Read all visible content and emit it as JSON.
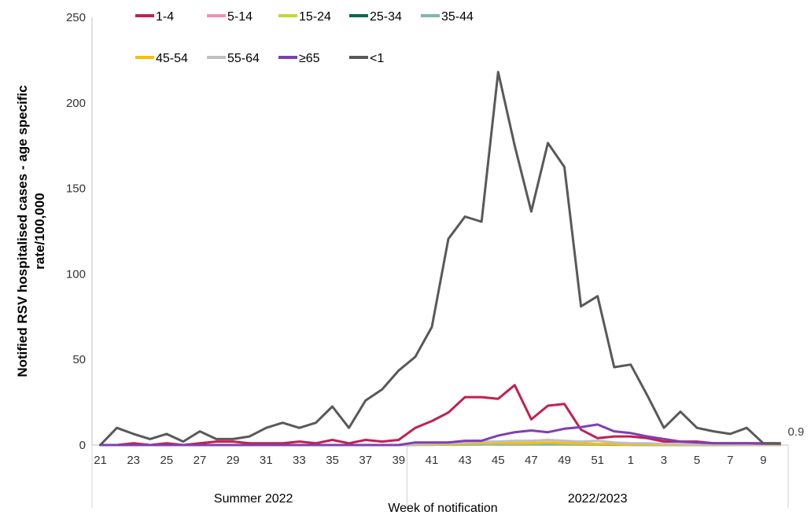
{
  "chart_data": {
    "type": "line",
    "title": "",
    "ylabel_lines": [
      "Notified RSV hospitalised cases - age specific",
      "rate/100,000"
    ],
    "xlabel": "Week of notification",
    "ylim": [
      0,
      250
    ],
    "yticks": [
      0,
      50,
      100,
      150,
      200,
      250
    ],
    "x": [
      "21",
      "22",
      "23",
      "24",
      "25",
      "26",
      "27",
      "28",
      "29",
      "30",
      "31",
      "32",
      "33",
      "34",
      "35",
      "36",
      "37",
      "38",
      "39",
      "40",
      "41",
      "42",
      "43",
      "44",
      "45",
      "46",
      "47",
      "48",
      "49",
      "50",
      "51",
      "52",
      "1",
      "2",
      "3",
      "4",
      "5",
      "6",
      "7",
      "8",
      "9",
      "10"
    ],
    "x_tick_labels": [
      "21",
      "",
      "23",
      "",
      "25",
      "",
      "27",
      "",
      "29",
      "",
      "31",
      "",
      "33",
      "",
      "35",
      "",
      "37",
      "",
      "39",
      "",
      "41",
      "",
      "43",
      "",
      "45",
      "",
      "47",
      "",
      "49",
      "",
      "51",
      "",
      "1",
      "",
      "3",
      "",
      "5",
      "",
      "7",
      "",
      "9",
      ""
    ],
    "x_groups": [
      {
        "label": "Summer 2022",
        "start": "21",
        "end": "39"
      },
      {
        "label": "2022/2023",
        "start": "40",
        "end": "10"
      }
    ],
    "grid": false,
    "legend_position": "top",
    "series": [
      {
        "name": "1-4",
        "color": "#C0214F",
        "values": [
          0,
          0,
          1,
          0,
          1,
          0,
          1,
          2,
          2,
          1,
          1,
          1,
          2,
          1,
          3,
          1,
          3,
          2,
          3,
          10,
          14,
          19,
          28,
          28,
          27,
          35,
          15,
          23,
          24,
          9,
          4,
          5,
          5,
          4,
          2,
          2,
          2,
          1,
          1,
          1,
          1,
          1
        ]
      },
      {
        "name": "5-14",
        "color": "#F28FB0",
        "values": [
          0,
          0,
          0,
          0,
          0,
          0,
          0,
          0,
          0,
          0,
          0,
          0,
          0,
          0,
          0,
          0,
          0,
          0,
          0,
          0.5,
          0.5,
          0.5,
          1,
          1,
          1,
          1,
          1,
          1,
          1,
          1,
          0.5,
          0.5,
          0.5,
          0.3,
          0.2,
          0.2,
          0.2,
          0.1,
          0.1,
          0.1,
          0.1,
          0.1
        ]
      },
      {
        "name": "15-24",
        "color": "#C5D72E",
        "values": [
          0,
          0,
          0,
          0,
          0,
          0,
          0,
          0,
          0,
          0,
          0,
          0,
          0,
          0,
          0,
          0,
          0,
          0,
          0,
          0.2,
          0.3,
          0.3,
          0.5,
          0.5,
          0.5,
          0.5,
          0.5,
          0.5,
          0.5,
          0.5,
          0.3,
          0.3,
          0.2,
          0.2,
          0.1,
          0.1,
          0.1,
          0.1,
          0,
          0,
          0,
          0
        ]
      },
      {
        "name": "25-34",
        "color": "#00694E",
        "values": [
          0,
          0,
          0,
          0,
          0,
          0,
          0,
          0,
          0,
          0,
          0,
          0,
          0,
          0,
          0,
          0,
          0,
          0,
          0,
          0.2,
          0.2,
          0.3,
          0.3,
          0.4,
          0.4,
          0.4,
          0.4,
          0.4,
          0.4,
          0.3,
          0.3,
          0.2,
          0.2,
          0.1,
          0.1,
          0.1,
          0.1,
          0,
          0,
          0,
          0,
          0
        ]
      },
      {
        "name": "35-44",
        "color": "#7FB7AE",
        "values": [
          0,
          0,
          0,
          0,
          0,
          0,
          0,
          0,
          0,
          0,
          0,
          0,
          0,
          0,
          0,
          0,
          0,
          0,
          0,
          0.2,
          0.2,
          0.3,
          0.4,
          0.4,
          0.5,
          0.5,
          0.5,
          0.5,
          0.5,
          0.4,
          0.3,
          0.3,
          0.2,
          0.2,
          0.1,
          0.1,
          0.1,
          0.1,
          0,
          0,
          0,
          0
        ]
      },
      {
        "name": "45-54",
        "color": "#F5C000",
        "values": [
          0,
          0,
          0,
          0,
          0,
          0,
          0,
          0,
          0,
          0,
          0,
          0,
          0,
          0,
          0,
          0,
          0,
          0,
          0,
          0.3,
          0.4,
          0.5,
          0.8,
          1,
          1,
          1,
          1,
          1.5,
          1,
          0.8,
          0.6,
          0.4,
          0.3,
          0.3,
          0.2,
          0.2,
          0.1,
          0.1,
          0.1,
          0,
          0,
          0
        ]
      },
      {
        "name": "55-64",
        "color": "#BFBFBF",
        "values": [
          0,
          0,
          0,
          0,
          0,
          0,
          0,
          0,
          0,
          0,
          0,
          0,
          0,
          0,
          0,
          0,
          0,
          0,
          0,
          0.5,
          0.8,
          1,
          1.5,
          2,
          2,
          2.5,
          2.5,
          3,
          2.5,
          2,
          2.5,
          1.5,
          1,
          1,
          0.5,
          0.5,
          0.3,
          0.3,
          0.2,
          0.2,
          0.1,
          0.1
        ]
      },
      {
        "name": "≥65",
        "color": "#7F3FB0",
        "values": [
          0,
          0,
          0,
          0,
          0,
          0,
          0,
          0,
          0,
          0,
          0,
          0,
          0,
          0,
          0,
          0,
          0,
          0,
          0,
          1.5,
          1.5,
          1.5,
          2.5,
          2.5,
          5.5,
          7.5,
          8.5,
          7.5,
          9.5,
          10.5,
          12,
          8,
          7,
          5,
          3.5,
          2,
          1.5,
          1,
          1,
          1,
          0.8,
          0.8
        ]
      },
      {
        "name": "<1",
        "color": "#595959",
        "values": [
          0,
          10,
          6.5,
          3.5,
          6.5,
          2,
          8,
          3.5,
          3.5,
          5,
          10,
          13,
          10,
          13,
          22.5,
          10,
          26,
          32.5,
          43.5,
          51.5,
          69,
          120.5,
          133.5,
          130.5,
          218,
          175,
          136.5,
          176.5,
          162.5,
          81,
          87,
          45.5,
          47,
          29,
          10,
          19.5,
          10,
          8,
          6.5,
          10,
          1,
          0.9
        ]
      }
    ],
    "annotations": [
      {
        "text": "0.9",
        "x": "10",
        "series": "<1"
      }
    ]
  }
}
